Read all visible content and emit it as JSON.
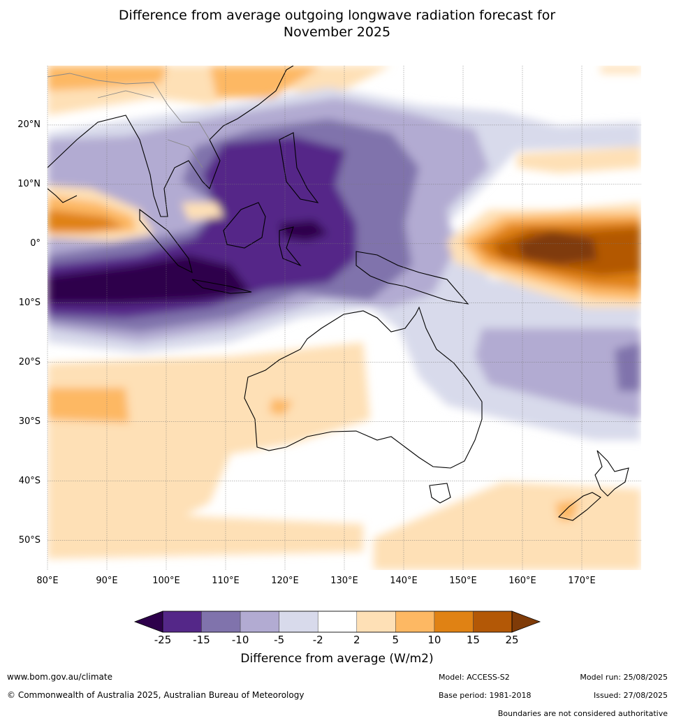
{
  "title": {
    "line1": "Difference from average outgoing longwave radiation forecast for",
    "line2": "November 2025"
  },
  "map": {
    "region": "Australia, Maritime Continent and Western Pacific",
    "lon_range": [
      80,
      180
    ],
    "lat_range": [
      -55,
      30
    ],
    "lat_labels": [
      "20°N",
      "10°N",
      "0°",
      "10°S",
      "20°S",
      "30°S",
      "40°S",
      "50°S"
    ],
    "lat_values": [
      20,
      10,
      0,
      -10,
      -20,
      -30,
      -40,
      -50
    ],
    "lon_labels": [
      "80°E",
      "90°E",
      "100°E",
      "110°E",
      "120°E",
      "130°E",
      "140°E",
      "150°E",
      "160°E",
      "170°E"
    ],
    "lon_values": [
      80,
      90,
      100,
      110,
      120,
      130,
      140,
      150,
      160,
      170
    ],
    "gridlines": true
  },
  "colorbar": {
    "title": "Difference from average (W/m2)",
    "ticks": [
      "-25",
      "-15",
      "-10",
      "-5",
      "-2",
      "2",
      "5",
      "10",
      "15",
      "25"
    ],
    "colors": [
      "#2d004b",
      "#542788",
      "#8073ac",
      "#b2abd2",
      "#d8daeb",
      "#ffffff",
      "#fee0b6",
      "#fdb863",
      "#e08214",
      "#b35806",
      "#7f3b08"
    ],
    "extend": "both"
  },
  "footer": {
    "website": "www.bom.gov.au/climate",
    "copyright": "© Commonwealth of Australia 2025, Australian Bureau of Meteorology",
    "model": "Model: ACCESS-S2",
    "base_period": "Base period: 1981-2018",
    "model_run": "Model run: 25/08/2025",
    "issued": "Issued: 27/08/2025",
    "disclaimer": "Boundaries are not considered authoritative"
  }
}
